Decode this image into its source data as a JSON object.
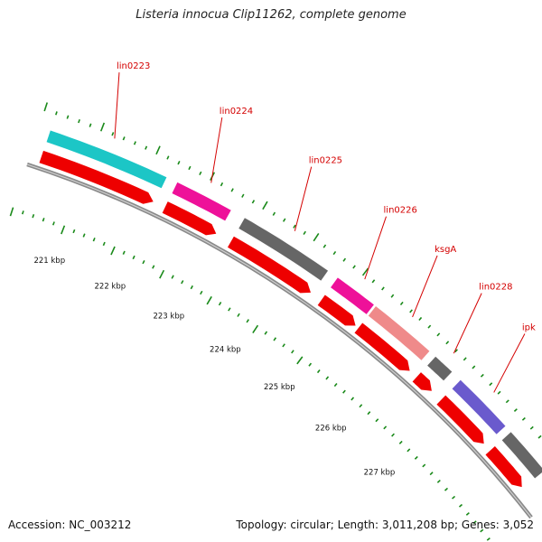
{
  "title": "Listeria innocua Clip11262, complete genome",
  "footer": {
    "accession": "Accession: NC_003212",
    "summary": "Topology: circular; Length: 3,011,208 bp; Genes: 3,052"
  },
  "colors": {
    "backbone": "#8a8a8a",
    "tick": "#1a8a1a",
    "cds": "#ee0000",
    "label": "#d40000",
    "cyan": "#1cc6c6",
    "magenta": "#ee1199",
    "darkgray": "#666666",
    "salmon": "#ef8a8a",
    "purple": "#6a5acd"
  },
  "kbp_labels": [
    "221 kbp",
    "222 kbp",
    "223 kbp",
    "224 kbp",
    "225 kbp",
    "226 kbp",
    "227 kbp"
  ],
  "genes": [
    {
      "label": "lin0223",
      "color": "cyan"
    },
    {
      "label": "lin0224",
      "color": "magenta"
    },
    {
      "label": "lin0225",
      "color": "darkgray"
    },
    {
      "label": "lin0226",
      "color": "magenta"
    },
    {
      "label": "ksgA",
      "color": "salmon"
    },
    {
      "label": "lin0228",
      "color": "darkgray"
    },
    {
      "label": "ipk",
      "color": "purple"
    },
    {
      "label": "",
      "color": "darkgray"
    }
  ]
}
